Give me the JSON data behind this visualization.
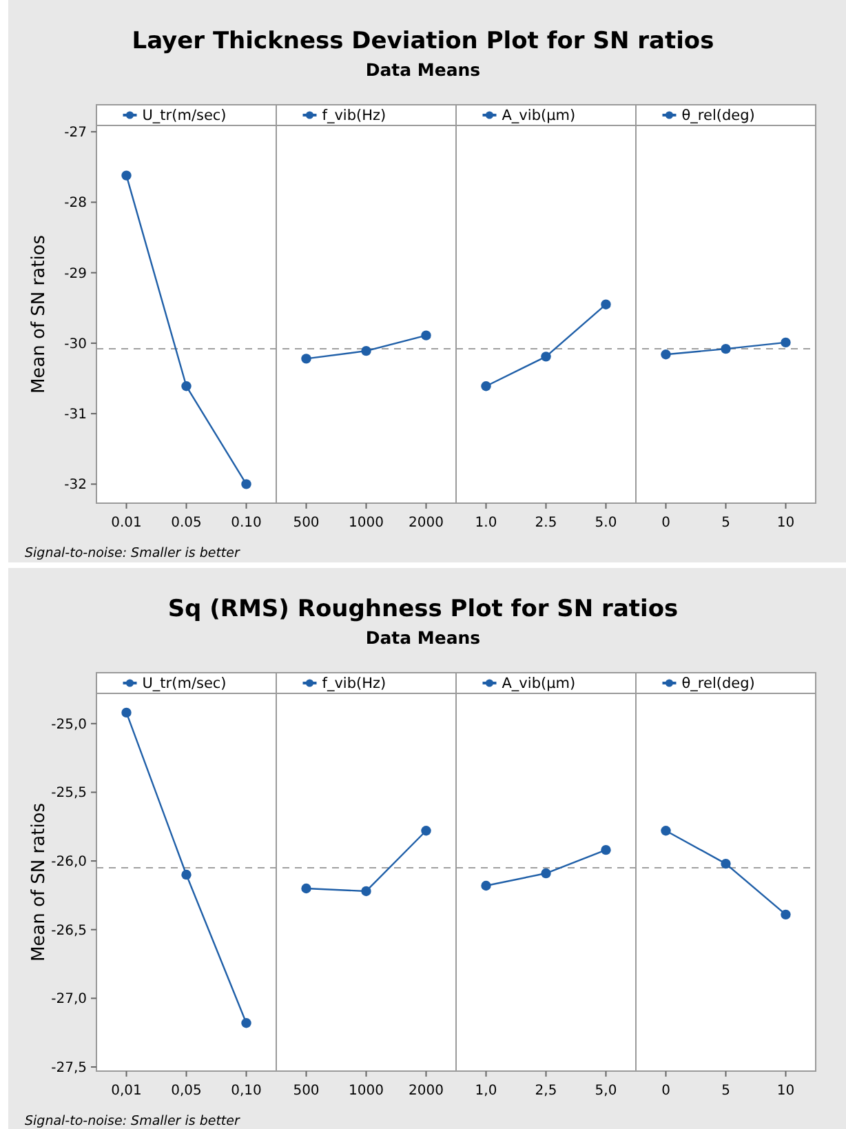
{
  "chart_data": [
    {
      "type": "line",
      "title": "Layer Thickness Deviation Plot for SN ratios",
      "subtitle": "Data Means",
      "ylabel": "Mean of SN ratios",
      "annotations": [
        "Signal-to-noise: Smaller is better"
      ],
      "categories": [
        "0.01",
        "0.05",
        "0.10",
        "500",
        "1000",
        "2000",
        "1.0",
        "2.5",
        "5.0",
        "0",
        "5",
        "10"
      ],
      "marker": "circle",
      "legend": "top",
      "ylim": [
        -32.27,
        -26.91
      ],
      "yticks": [
        -27,
        -28,
        -29,
        -30,
        -31,
        -32
      ],
      "ref_lines": [
        {
          "axis": "y",
          "value": -30.08,
          "line_style": "dashed",
          "color": "#a0a0a0"
        }
      ],
      "series": [
        {
          "name": "U_tr(m/sec)",
          "color": "#1f5fa8",
          "values": [
            -27.62,
            -30.61,
            -32.0,
            null,
            null,
            null,
            null,
            null,
            null,
            null,
            null,
            null
          ]
        },
        {
          "name": "f_vib(Hz)",
          "color": "#1f5fa8",
          "values": [
            null,
            null,
            null,
            -30.22,
            -30.11,
            -29.89,
            null,
            null,
            null,
            null,
            null,
            null
          ]
        },
        {
          "name": "A_vib(µm)",
          "color": "#1f5fa8",
          "values": [
            null,
            null,
            null,
            null,
            null,
            null,
            -30.61,
            -30.19,
            -29.45,
            null,
            null,
            null
          ]
        },
        {
          "name": "θ_rel(deg)",
          "color": "#1f5fa8",
          "values": [
            null,
            null,
            null,
            null,
            null,
            null,
            null,
            null,
            null,
            -30.16,
            -30.08,
            -29.99
          ]
        }
      ]
    },
    {
      "type": "line",
      "title": "Sq (RMS) Roughness Plot for SN ratios",
      "subtitle": "Data Means",
      "ylabel": "Mean of SN ratios",
      "annotations": [
        "Signal-to-noise: Smaller is better"
      ],
      "categories": [
        "0,01",
        "0,05",
        "0,10",
        "500",
        "1000",
        "2000",
        "1,0",
        "2,5",
        "5,0",
        "0",
        "5",
        "10"
      ],
      "marker": "circle",
      "legend": "top",
      "ylim": [
        -27.53,
        -24.78
      ],
      "yticks": [
        {
          "value": -25,
          "label": "-25,0"
        },
        {
          "value": -25.5,
          "label": "-25,5"
        },
        {
          "value": -26,
          "label": "-26,0"
        },
        {
          "value": -26.5,
          "label": "-26,5"
        },
        {
          "value": -27,
          "label": "-27,0"
        },
        {
          "value": -27.5,
          "label": "-27,5"
        }
      ],
      "ref_lines": [
        {
          "axis": "y",
          "value": -26.05,
          "line_style": "dashed",
          "color": "#a0a0a0"
        }
      ],
      "series": [
        {
          "name": "U_tr(m/sec)",
          "color": "#1f5fa8",
          "values": [
            -24.92,
            -26.1,
            -27.18,
            null,
            null,
            null,
            null,
            null,
            null,
            null,
            null,
            null
          ]
        },
        {
          "name": "f_vib(Hz)",
          "color": "#1f5fa8",
          "values": [
            null,
            null,
            null,
            -26.2,
            -26.22,
            -25.78,
            null,
            null,
            null,
            null,
            null,
            null
          ]
        },
        {
          "name": "A_vib(µm)",
          "color": "#1f5fa8",
          "values": [
            null,
            null,
            null,
            null,
            null,
            null,
            -26.18,
            -26.09,
            -25.92,
            null,
            null,
            null
          ]
        },
        {
          "name": "θ_rel(deg)",
          "color": "#1f5fa8",
          "values": [
            null,
            null,
            null,
            null,
            null,
            null,
            null,
            null,
            null,
            -25.78,
            -26.02,
            -26.39
          ]
        }
      ]
    }
  ]
}
